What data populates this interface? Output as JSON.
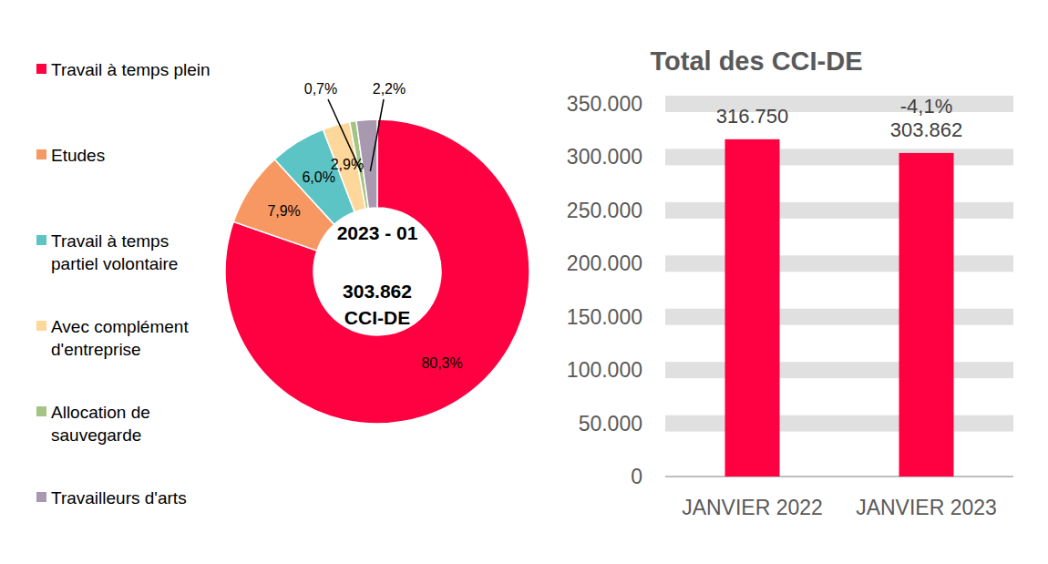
{
  "chart_data": [
    {
      "type": "donut",
      "categories": [
        "Travail à temps plein",
        "Etudes",
        "Travail à temps partiel volontaire",
        "Avec complément d'entreprise",
        "Allocation de sauvegarde",
        "Travailleurs d'arts"
      ],
      "values": [
        80.3,
        7.9,
        6.0,
        2.9,
        0.7,
        2.2
      ],
      "value_labels": [
        "80,3%",
        "7,9%",
        "6,0%",
        "2,9%",
        "0,7%",
        "2,2%"
      ],
      "colors": [
        "#ff0040",
        "#f79862",
        "#5cc4c4",
        "#fed89a",
        "#a3c482",
        "#a898b0"
      ],
      "data_labels": true,
      "legend": "left",
      "annotations": [
        "2023 - 01",
        "303.862",
        "CCI-DE"
      ]
    },
    {
      "type": "bar",
      "title": "Total des CCI-DE",
      "categories": [
        "JANVIER 2022",
        "JANVIER 2023"
      ],
      "values": [
        316750,
        303862
      ],
      "value_labels": [
        "316.750",
        "303.862"
      ],
      "color": "#ff0040",
      "ylim": [
        0,
        350000
      ],
      "yticks": [
        0,
        {
          "value": 50000,
          "label": "50.000"
        },
        {
          "value": 100000,
          "label": "100.000"
        },
        {
          "value": 150000,
          "label": "150.000"
        },
        {
          "value": 200000,
          "label": "200.000"
        },
        {
          "value": 250000,
          "label": "250.000"
        },
        {
          "value": 300000,
          "label": "300.000"
        },
        {
          "value": 350000,
          "label": "350.000"
        }
      ],
      "grid": true,
      "data_labels": true,
      "annotations": [
        "-4,1%"
      ]
    }
  ]
}
